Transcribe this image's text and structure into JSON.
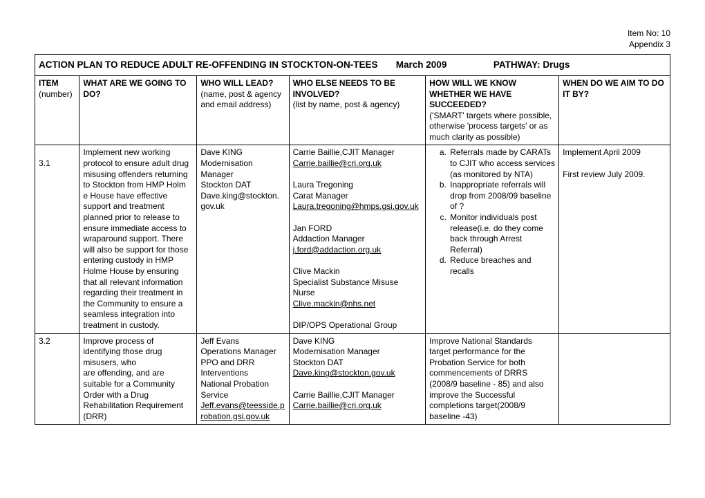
{
  "meta": {
    "item_no_label": "Item No: 10",
    "appendix_label": "Appendix 3"
  },
  "title": {
    "part1": "ACTION PLAN TO REDUCE ADULT RE-OFFENDING IN STOCKTON-ON-TEES",
    "part2": "March 2009",
    "part3": "PATHWAY: Drugs"
  },
  "headers": {
    "item_b": "ITEM",
    "item_p": "(number)",
    "what_b": "WHAT ARE WE GOING TO DO?",
    "lead_b": "WHO WILL LEAD?",
    "lead_p": "(name, post & agency and email address)",
    "else_b": "WHO ELSE NEEDS TO BE INVOLVED?",
    "else_p": "(list by name, post & agency)",
    "how_b": "HOW WILL WE KNOW WHETHER WE HAVE SUCCEEDED?",
    "how_p": "('SMART' targets where possible, otherwise 'process targets' or as much clarity as possible)",
    "when_b": "WHEN DO WE AIM TO DO IT BY?"
  },
  "row1": {
    "item": "3.1",
    "what": "Implement new working protocol to ensure adult drug misusing offenders returning to Stockton from HMP Holm\ne House have effective support and treatment planned prior to release to ensure immediate access to wraparound support. There will also be support for those entering custody in HMP Holme House by ensuring that all relevant information regarding their treatment in the Community to ensure a seamless integration into treatment in custody.",
    "lead": {
      "l1": "Dave KING",
      "l2": "Modernisation",
      "l3": "Manager",
      "l4": "Stockton DAT",
      "l5": "Dave.king@stockton. gov.uk"
    },
    "else": {
      "p1a": "Carrie Baillie,CJIT Manager",
      "p1b": "Carrie.baillie@cri.org.uk",
      "p2a": "Laura Tregoning",
      "p2b": "Carat Manager",
      "p2c": "Laura.tregoning@hmps.gsi.gov.uk",
      "p3a": "Jan FORD",
      "p3b": "Addaction Manager",
      "p3c": "j.ford@addaction.org.uk",
      "p4a": "Clive Mackin",
      "p4b": "Specialist Substance Misuse Nurse",
      "p4c": "Clive.mackin@nhs.net",
      "p5a": "DIP/OPS Operational Group"
    },
    "how": {
      "a": "Referrals made by CARATs to CJIT who access services (as monitored by  NTA)",
      "b": "Inappropriate referrals will drop from 2008/09 baseline of ?",
      "c": "Monitor individuals post release(i.e. do they come back through Arrest Referral)",
      "d": "Reduce breaches and recalls"
    },
    "when": {
      "l1": "Implement April 2009",
      "l2": "First review July 2009."
    }
  },
  "row2": {
    "item": "3.2",
    "what": "Improve process of identifying those drug misusers, who\nare offending, and are suitable for a Community Order with a Drug Rehabilitation Requirement (DRR)",
    "lead": {
      "l1": "Jeff Evans",
      "l2": "Operations Manager",
      "l3": "PPO and DRR Interventions",
      "l4": "National Probation Service",
      "l5": "Jeff.evans@teesside.probation.gsi.gov.uk"
    },
    "else": {
      "p1a": "Dave KING",
      "p1b": "Modernisation Manager",
      "p1c": "Stockton DAT",
      "p1d": "Dave.king@stockton.gov.uk",
      "p2a": "Carrie Baillie,CJIT Manager",
      "p2b": "Carrie.baillie@cri.org.uk"
    },
    "how": "Improve National Standards target performance for the Probation Service for both commencements of DRRS (2008/9 baseline - 85) and also improve the Successful completions target(2008/9 baseline -43)",
    "when": ""
  }
}
